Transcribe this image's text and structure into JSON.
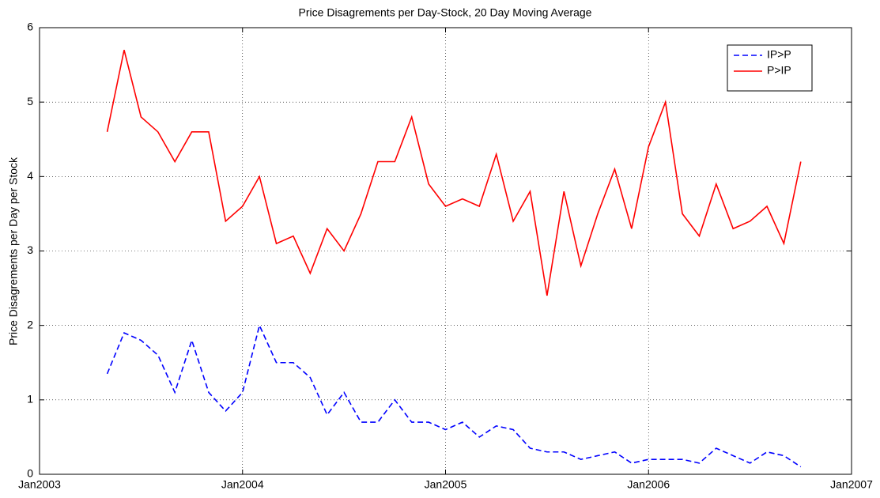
{
  "chart_data": {
    "type": "line",
    "title": "Price Disagrements per Day-Stock, 20 Day Moving Average",
    "y_label": "Price Disagrements per Day per Stock",
    "x": [
      "2003-05",
      "2003-06",
      "2003-07",
      "2003-08",
      "2003-09",
      "2003-10",
      "2003-11",
      "2003-12",
      "2004-01",
      "2004-02",
      "2004-03",
      "2004-04",
      "2004-05",
      "2004-06",
      "2004-07",
      "2004-08",
      "2004-09",
      "2004-10",
      "2004-11",
      "2004-12",
      "2005-01",
      "2005-02",
      "2005-03",
      "2005-04",
      "2005-05",
      "2005-06",
      "2005-07",
      "2005-08",
      "2005-09",
      "2005-10",
      "2005-11",
      "2005-12",
      "2006-01",
      "2006-02",
      "2006-03",
      "2006-04",
      "2006-05",
      "2006-06",
      "2006-07",
      "2006-08",
      "2006-09",
      "2006-10"
    ],
    "series": [
      {
        "name": "IP>P",
        "color": "#0000ff",
        "line_style": "dashed",
        "values": [
          1.35,
          1.9,
          1.8,
          1.6,
          1.1,
          1.8,
          1.1,
          0.85,
          1.1,
          2.0,
          1.5,
          1.5,
          1.3,
          0.8,
          1.1,
          0.7,
          0.7,
          1.0,
          0.7,
          0.7,
          0.6,
          0.7,
          0.5,
          0.65,
          0.6,
          0.35,
          0.3,
          0.3,
          0.2,
          0.25,
          0.3,
          0.15,
          0.2,
          0.2,
          0.2,
          0.15,
          0.35,
          0.25,
          0.15,
          0.3,
          0.25,
          0.1
        ]
      },
      {
        "name": "P>IP",
        "color": "#ff0000",
        "line_style": "solid",
        "values": [
          4.6,
          5.7,
          4.8,
          4.6,
          4.2,
          4.6,
          4.6,
          3.4,
          3.6,
          4.0,
          3.1,
          3.2,
          2.7,
          3.3,
          3.0,
          3.5,
          4.2,
          4.2,
          4.8,
          3.9,
          3.6,
          3.7,
          3.6,
          4.3,
          3.4,
          3.8,
          2.4,
          3.8,
          2.8,
          3.5,
          4.1,
          3.3,
          4.4,
          5.0,
          3.5,
          3.2,
          3.9,
          3.3,
          3.4,
          3.6,
          3.1,
          4.2
        ]
      }
    ],
    "xlim": [
      "2003-01",
      "2007-01"
    ],
    "xticks": [
      {
        "value": "2003-01",
        "label": "Jan2003"
      },
      {
        "value": "2004-01",
        "label": "Jan2004"
      },
      {
        "value": "2005-01",
        "label": "Jan2005"
      },
      {
        "value": "2006-01",
        "label": "Jan2006"
      },
      {
        "value": "2007-01",
        "label": "Jan2007"
      }
    ],
    "ylim": [
      0,
      6
    ],
    "yticks": [
      0,
      1,
      2,
      3,
      4,
      5,
      6
    ],
    "grid": true,
    "legend": "upper right"
  }
}
